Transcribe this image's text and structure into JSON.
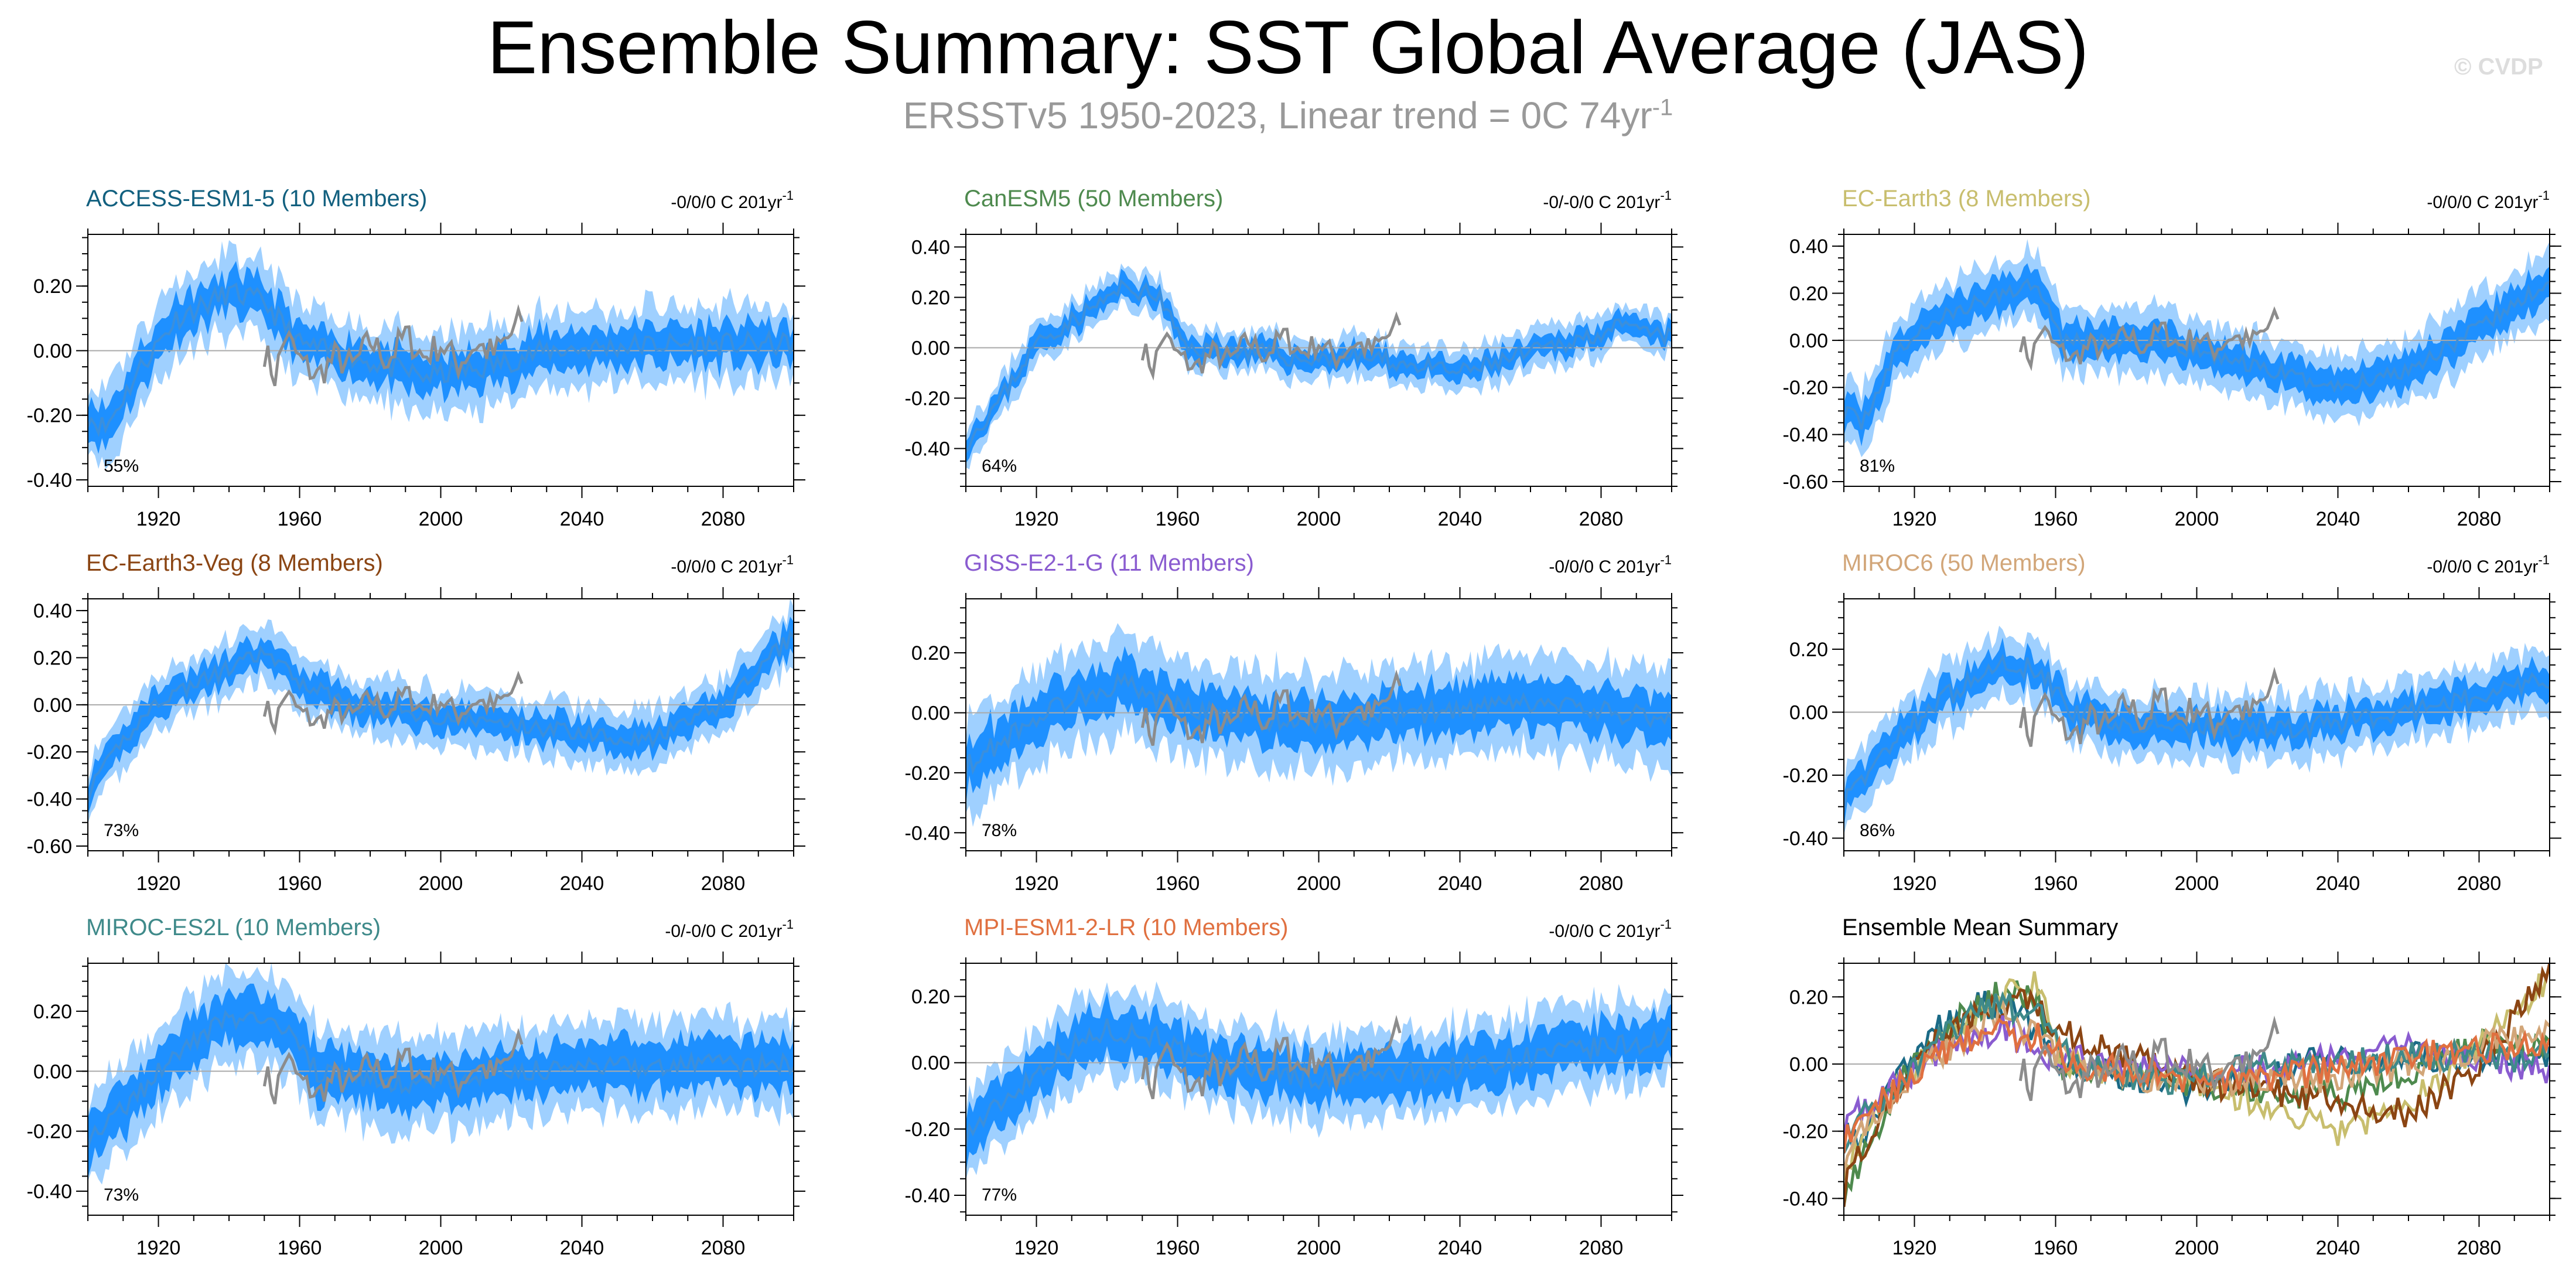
{
  "title": "Ensemble Summary: SST Global Average (JAS)",
  "subtitle_main": "ERSSTv5 1950-2023, Linear trend = 0C 74yr",
  "subtitle_sup": "-1",
  "copyright": "© CVDP",
  "colors": {
    "inner_band": "#1e90ff",
    "outer_band": "#9fd0ff",
    "mean_line": "#3b8fdc",
    "observations": "#8c8c8c",
    "zero_line": "#aaaaaa"
  },
  "chart_data": [
    {
      "type": "area",
      "title": "ACCESS-ESM1-5 (10 Members)",
      "title_color": "#12607f",
      "trend_label": "-0/0/0 C 201yr",
      "trend_sup": "-1",
      "percent_label": "55%",
      "ylim": [
        -0.42,
        0.36
      ],
      "yticks": [
        -0.4,
        -0.2,
        0.0,
        0.2
      ],
      "ytick_labels": [
        "-0.40",
        "-0.20",
        "0.00",
        "0.20"
      ],
      "xlim": [
        1900,
        2100
      ],
      "xticks": [
        1920,
        1960,
        2000,
        2040,
        2080
      ],
      "xtick_labels": [
        "1920",
        "1960",
        "2000",
        "2040",
        "2080"
      ],
      "mean_anchors": [
        [
          1900,
          -0.2
        ],
        [
          1905,
          -0.24
        ],
        [
          1915,
          -0.05
        ],
        [
          1925,
          0.1
        ],
        [
          1940,
          0.18
        ],
        [
          1950,
          0.15
        ],
        [
          1960,
          0.02
        ],
        [
          1975,
          -0.02
        ],
        [
          1995,
          -0.08
        ],
        [
          2010,
          -0.06
        ],
        [
          2030,
          0.0
        ],
        [
          2060,
          0.02
        ],
        [
          2100,
          0.02
        ]
      ],
      "inner_width": 0.06,
      "outer_width": 0.12,
      "seed": 11
    },
    {
      "type": "area",
      "title": "CanESM5 (50 Members)",
      "title_color": "#4e8a4e",
      "trend_label": "-0/-0/0 C 201yr",
      "trend_sup": "-1",
      "percent_label": "64%",
      "ylim": [
        -0.55,
        0.45
      ],
      "yticks": [
        -0.4,
        -0.2,
        0.0,
        0.2,
        0.4
      ],
      "ytick_labels": [
        "-0.40",
        "-0.20",
        "0.00",
        "0.20",
        "0.40"
      ],
      "xlim": [
        1900,
        2100
      ],
      "xticks": [
        1920,
        1960,
        2000,
        2040,
        2080
      ],
      "xtick_labels": [
        "1920",
        "1960",
        "2000",
        "2040",
        "2080"
      ],
      "mean_anchors": [
        [
          1900,
          -0.38
        ],
        [
          1910,
          -0.2
        ],
        [
          1920,
          0.02
        ],
        [
          1935,
          0.15
        ],
        [
          1945,
          0.24
        ],
        [
          1955,
          0.2
        ],
        [
          1962,
          0.0
        ],
        [
          1985,
          -0.02
        ],
        [
          1995,
          -0.05
        ],
        [
          2010,
          -0.03
        ],
        [
          2040,
          -0.1
        ],
        [
          2070,
          0.02
        ],
        [
          2085,
          0.08
        ],
        [
          2100,
          0.04
        ]
      ],
      "inner_width": 0.04,
      "outer_width": 0.08,
      "seed": 23
    },
    {
      "type": "area",
      "title": "EC-Earth3 (8 Members)",
      "title_color": "#c8be6e",
      "trend_label": "-0/0/0 C 201yr",
      "trend_sup": "-1",
      "percent_label": "81%",
      "ylim": [
        -0.62,
        0.45
      ],
      "yticks": [
        -0.6,
        -0.4,
        -0.2,
        0.0,
        0.2,
        0.4
      ],
      "ytick_labels": [
        "-0.60",
        "-0.40",
        "-0.20",
        "0.00",
        "0.20",
        "0.40"
      ],
      "xlim": [
        1900,
        2100
      ],
      "xticks": [
        1920,
        1960,
        2000,
        2040,
        2080
      ],
      "xtick_labels": [
        "1920",
        "1960",
        "2000",
        "2040",
        "2080"
      ],
      "mean_anchors": [
        [
          1900,
          -0.3
        ],
        [
          1905,
          -0.35
        ],
        [
          1915,
          -0.05
        ],
        [
          1925,
          0.08
        ],
        [
          1945,
          0.2
        ],
        [
          1955,
          0.25
        ],
        [
          1962,
          0.0
        ],
        [
          1985,
          0.0
        ],
        [
          2000,
          -0.05
        ],
        [
          2040,
          -0.2
        ],
        [
          2060,
          -0.12
        ],
        [
          2080,
          0.05
        ],
        [
          2100,
          0.25
        ]
      ],
      "inner_width": 0.07,
      "outer_width": 0.14,
      "seed": 37
    },
    {
      "type": "area",
      "title": "EC-Earth3-Veg (8 Members)",
      "title_color": "#8b4513",
      "trend_label": "-0/0/0 C 201yr",
      "trend_sup": "-1",
      "percent_label": "73%",
      "ylim": [
        -0.62,
        0.45
      ],
      "yticks": [
        -0.6,
        -0.4,
        -0.2,
        0.0,
        0.2,
        0.4
      ],
      "ytick_labels": [
        "-0.60",
        "-0.40",
        "-0.20",
        "0.00",
        "0.20",
        "0.40"
      ],
      "xlim": [
        1900,
        2100
      ],
      "xticks": [
        1920,
        1960,
        2000,
        2040,
        2080
      ],
      "xtick_labels": [
        "1920",
        "1960",
        "2000",
        "2040",
        "2080"
      ],
      "mean_anchors": [
        [
          1900,
          -0.38
        ],
        [
          1910,
          -0.15
        ],
        [
          1920,
          0.02
        ],
        [
          1935,
          0.12
        ],
        [
          1950,
          0.22
        ],
        [
          1960,
          0.1
        ],
        [
          1975,
          0.0
        ],
        [
          2000,
          -0.05
        ],
        [
          2030,
          -0.1
        ],
        [
          2060,
          -0.15
        ],
        [
          2080,
          0.0
        ],
        [
          2100,
          0.3
        ]
      ],
      "inner_width": 0.06,
      "outer_width": 0.12,
      "seed": 41
    },
    {
      "type": "area",
      "title": "GISS-E2-1-G (11 Members)",
      "title_color": "#8a5cd0",
      "trend_label": "-0/0/0 C 201yr",
      "trend_sup": "-1",
      "percent_label": "78%",
      "ylim": [
        -0.46,
        0.38
      ],
      "yticks": [
        -0.4,
        -0.2,
        0.0,
        0.2
      ],
      "ytick_labels": [
        "-0.40",
        "-0.20",
        "0.00",
        "0.20"
      ],
      "xlim": [
        1900,
        2100
      ],
      "xticks": [
        1920,
        1960,
        2000,
        2040,
        2080
      ],
      "xtick_labels": [
        "1920",
        "1960",
        "2000",
        "2040",
        "2080"
      ],
      "mean_anchors": [
        [
          1900,
          -0.18
        ],
        [
          1915,
          -0.05
        ],
        [
          1930,
          0.05
        ],
        [
          1945,
          0.1
        ],
        [
          1960,
          0.02
        ],
        [
          1980,
          -0.02
        ],
        [
          2000,
          -0.03
        ],
        [
          2030,
          0.0
        ],
        [
          2060,
          0.03
        ],
        [
          2100,
          -0.02
        ]
      ],
      "inner_width": 0.08,
      "outer_width": 0.16,
      "seed": 53
    },
    {
      "type": "area",
      "title": "MIROC6 (50 Members)",
      "title_color": "#d2a679",
      "trend_label": "-0/0/0 C 201yr",
      "trend_sup": "-1",
      "percent_label": "86%",
      "ylim": [
        -0.44,
        0.36
      ],
      "yticks": [
        -0.4,
        -0.2,
        0.0,
        0.2
      ],
      "ytick_labels": [
        "-0.40",
        "-0.20",
        "0.00",
        "0.20"
      ],
      "xlim": [
        1900,
        2100
      ],
      "xticks": [
        1920,
        1960,
        2000,
        2040,
        2080
      ],
      "xtick_labels": [
        "1920",
        "1960",
        "2000",
        "2040",
        "2080"
      ],
      "mean_anchors": [
        [
          1900,
          -0.28
        ],
        [
          1910,
          -0.15
        ],
        [
          1925,
          0.02
        ],
        [
          1945,
          0.15
        ],
        [
          1955,
          0.14
        ],
        [
          1965,
          0.0
        ],
        [
          1990,
          -0.05
        ],
        [
          2030,
          -0.05
        ],
        [
          2060,
          0.0
        ],
        [
          2100,
          0.1
        ]
      ],
      "inner_width": 0.05,
      "outer_width": 0.1,
      "seed": 67
    },
    {
      "type": "area",
      "title": "MIROC-ES2L (10 Members)",
      "title_color": "#3f8a8a",
      "trend_label": "-0/-0/0 C 201yr",
      "trend_sup": "-1",
      "percent_label": "73%",
      "ylim": [
        -0.48,
        0.36
      ],
      "yticks": [
        -0.4,
        -0.2,
        0.0,
        0.2
      ],
      "ytick_labels": [
        "-0.40",
        "-0.20",
        "0.00",
        "0.20"
      ],
      "xlim": [
        1900,
        2100
      ],
      "xticks": [
        1920,
        1960,
        2000,
        2040,
        2080
      ],
      "xtick_labels": [
        "1920",
        "1960",
        "2000",
        "2040",
        "2080"
      ],
      "mean_anchors": [
        [
          1900,
          -0.22
        ],
        [
          1910,
          -0.12
        ],
        [
          1925,
          0.05
        ],
        [
          1940,
          0.18
        ],
        [
          1955,
          0.15
        ],
        [
          1965,
          0.0
        ],
        [
          1990,
          -0.05
        ],
        [
          2020,
          0.0
        ],
        [
          2060,
          0.02
        ],
        [
          2100,
          0.02
        ]
      ],
      "inner_width": 0.08,
      "outer_width": 0.15,
      "seed": 79
    },
    {
      "type": "area",
      "title": "MPI-ESM1-2-LR (10 Members)",
      "title_color": "#e07040",
      "trend_label": "-0/0/0 C 201yr",
      "trend_sup": "-1",
      "percent_label": "77%",
      "ylim": [
        -0.46,
        0.3
      ],
      "yticks": [
        -0.4,
        -0.2,
        0.0,
        0.2
      ],
      "ytick_labels": [
        "-0.40",
        "-0.20",
        "0.00",
        "0.20"
      ],
      "xlim": [
        1900,
        2100
      ],
      "xticks": [
        1920,
        1960,
        2000,
        2040,
        2080
      ],
      "xtick_labels": [
        "1920",
        "1960",
        "2000",
        "2040",
        "2080"
      ],
      "mean_anchors": [
        [
          1900,
          -0.22
        ],
        [
          1910,
          -0.12
        ],
        [
          1925,
          0.02
        ],
        [
          1940,
          0.1
        ],
        [
          1955,
          0.08
        ],
        [
          1965,
          0.0
        ],
        [
          1985,
          -0.02
        ],
        [
          2000,
          -0.05
        ],
        [
          2030,
          -0.03
        ],
        [
          2060,
          0.02
        ],
        [
          2100,
          0.07
        ]
      ],
      "inner_width": 0.07,
      "outer_width": 0.13,
      "seed": 97
    },
    {
      "type": "line",
      "title": "Ensemble Mean Summary",
      "title_color": "#000000",
      "ylim": [
        -0.45,
        0.3
      ],
      "yticks": [
        -0.4,
        -0.2,
        0.0,
        0.2
      ],
      "ytick_labels": [
        "-0.40",
        "-0.20",
        "0.00",
        "0.20"
      ],
      "xlim": [
        1900,
        2100
      ],
      "xticks": [
        1920,
        1960,
        2000,
        2040,
        2080
      ],
      "xtick_labels": [
        "1920",
        "1960",
        "2000",
        "2040",
        "2080"
      ],
      "series": [
        {
          "name": "ACCESS-ESM1-5",
          "color": "#1a6a86",
          "anchors": [
            [
              1900,
              -0.2
            ],
            [
              1905,
              -0.24
            ],
            [
              1915,
              -0.05
            ],
            [
              1925,
              0.1
            ],
            [
              1940,
              0.18
            ],
            [
              1950,
              0.15
            ],
            [
              1960,
              0.02
            ],
            [
              1975,
              -0.02
            ],
            [
              1995,
              -0.08
            ],
            [
              2010,
              -0.06
            ],
            [
              2030,
              0.0
            ],
            [
              2060,
              0.02
            ],
            [
              2100,
              0.02
            ]
          ]
        },
        {
          "name": "CanESM5",
          "color": "#4e8a4e",
          "anchors": [
            [
              1900,
              -0.38
            ],
            [
              1910,
              -0.2
            ],
            [
              1920,
              0.02
            ],
            [
              1935,
              0.15
            ],
            [
              1945,
              0.22
            ],
            [
              1955,
              0.18
            ],
            [
              1962,
              0.0
            ],
            [
              1995,
              -0.05
            ],
            [
              2040,
              -0.1
            ],
            [
              2070,
              0.02
            ],
            [
              2085,
              0.07
            ],
            [
              2100,
              0.04
            ]
          ]
        },
        {
          "name": "EC-Earth3",
          "color": "#c8be6e",
          "anchors": [
            [
              1900,
              -0.3
            ],
            [
              1915,
              -0.05
            ],
            [
              1930,
              0.08
            ],
            [
              1945,
              0.2
            ],
            [
              1955,
              0.24
            ],
            [
              1962,
              0.0
            ],
            [
              2000,
              -0.05
            ],
            [
              2040,
              -0.2
            ],
            [
              2060,
              -0.12
            ],
            [
              2080,
              0.05
            ],
            [
              2100,
              0.26
            ]
          ]
        },
        {
          "name": "EC-Earth3-Veg",
          "color": "#8b4513",
          "anchors": [
            [
              1900,
              -0.38
            ],
            [
              1910,
              -0.15
            ],
            [
              1920,
              0.02
            ],
            [
              1935,
              0.12
            ],
            [
              1950,
              0.22
            ],
            [
              1960,
              0.1
            ],
            [
              2000,
              -0.05
            ],
            [
              2030,
              -0.1
            ],
            [
              2060,
              -0.15
            ],
            [
              2080,
              0.0
            ],
            [
              2100,
              0.28
            ]
          ]
        },
        {
          "name": "GISS-E2-1-G",
          "color": "#8a5cd0",
          "anchors": [
            [
              1900,
              -0.18
            ],
            [
              1915,
              -0.05
            ],
            [
              1930,
              0.05
            ],
            [
              1945,
              0.1
            ],
            [
              1960,
              0.02
            ],
            [
              2000,
              -0.03
            ],
            [
              2030,
              0.0
            ],
            [
              2060,
              0.05
            ],
            [
              2100,
              -0.02
            ]
          ]
        },
        {
          "name": "MIROC6",
          "color": "#d2a679",
          "anchors": [
            [
              1900,
              -0.28
            ],
            [
              1910,
              -0.15
            ],
            [
              1925,
              0.02
            ],
            [
              1945,
              0.15
            ],
            [
              1965,
              0.0
            ],
            [
              1990,
              -0.05
            ],
            [
              2030,
              -0.05
            ],
            [
              2060,
              0.0
            ],
            [
              2100,
              0.1
            ]
          ]
        },
        {
          "name": "MIROC-ES2L",
          "color": "#3f8a8a",
          "anchors": [
            [
              1900,
              -0.22
            ],
            [
              1910,
              -0.12
            ],
            [
              1925,
              0.05
            ],
            [
              1940,
              0.18
            ],
            [
              1955,
              0.15
            ],
            [
              1965,
              0.0
            ],
            [
              1990,
              -0.05
            ],
            [
              2020,
              0.0
            ],
            [
              2060,
              0.02
            ],
            [
              2100,
              0.02
            ]
          ]
        },
        {
          "name": "MPI-ESM1-2-LR",
          "color": "#e07040",
          "anchors": [
            [
              1900,
              -0.22
            ],
            [
              1910,
              -0.12
            ],
            [
              1925,
              0.02
            ],
            [
              1940,
              0.1
            ],
            [
              1955,
              0.08
            ],
            [
              1965,
              0.0
            ],
            [
              2000,
              -0.05
            ],
            [
              2030,
              -0.03
            ],
            [
              2060,
              0.02
            ],
            [
              2100,
              0.07
            ]
          ]
        }
      ],
      "seed": 113
    }
  ],
  "observations": {
    "name": "ERSSTv5",
    "years": [
      1950,
      2023
    ],
    "anchors": [
      [
        1950,
        0.0
      ],
      [
        1953,
        -0.08
      ],
      [
        1956,
        0.05
      ],
      [
        1960,
        -0.03
      ],
      [
        1965,
        -0.08
      ],
      [
        1970,
        -0.02
      ],
      [
        1975,
        -0.05
      ],
      [
        1980,
        0.03
      ],
      [
        1985,
        -0.03
      ],
      [
        1990,
        0.05
      ],
      [
        1995,
        -0.02
      ],
      [
        2000,
        0.02
      ],
      [
        2005,
        -0.04
      ],
      [
        2010,
        0.02
      ],
      [
        2015,
        -0.01
      ],
      [
        2020,
        0.05
      ],
      [
        2023,
        0.1
      ]
    ],
    "seed": 7
  }
}
